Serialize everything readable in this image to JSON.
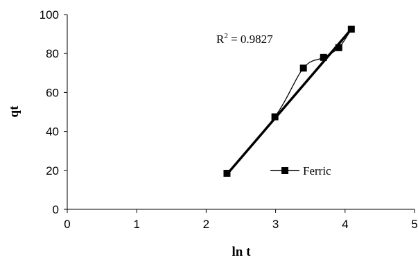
{
  "chart_data": {
    "type": "scatter",
    "xlabel": "ln t",
    "ylabel": "qt",
    "xlim": [
      0,
      5
    ],
    "ylim": [
      0,
      100
    ],
    "x_ticks": [
      "0",
      "1",
      "2",
      "3",
      "4",
      "5"
    ],
    "y_ticks": [
      "0",
      "20",
      "40",
      "60",
      "80",
      "100"
    ],
    "grid": false,
    "legend_position": "center-right",
    "annotation": {
      "prefix": "R",
      "sup": "2",
      "suffix": " = 0.9827"
    },
    "series": [
      {
        "name": "Ferric",
        "marker": "square",
        "line": "smoothed",
        "x": [
          2.3,
          2.99,
          3.4,
          3.69,
          3.91,
          4.09
        ],
        "y": [
          18.5,
          47.5,
          72.5,
          78.0,
          83.0,
          92.5
        ]
      }
    ],
    "trendline": {
      "x": [
        2.3,
        4.09
      ],
      "y": [
        18.0,
        92.5
      ]
    }
  }
}
